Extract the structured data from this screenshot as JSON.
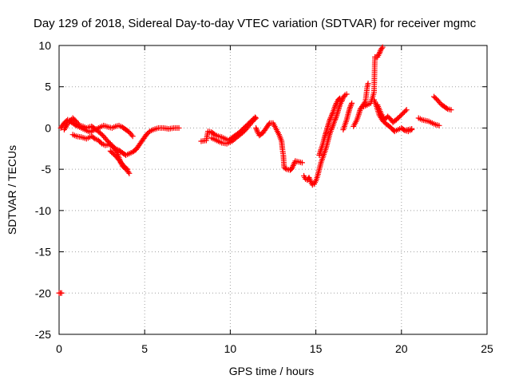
{
  "chart_data": {
    "type": "scatter",
    "title": "Day 129 of 2018, Sidereal Day-to-day VTEC variation (SDTVAR) for receiver mgmc",
    "xlabel": "GPS time / hours",
    "ylabel": "SDTVAR / TECUs",
    "xlim": [
      0,
      25
    ],
    "ylim": [
      -25,
      10
    ],
    "xticks": [
      0,
      5,
      10,
      15,
      20,
      25
    ],
    "yticks": [
      10,
      5,
      0,
      -5,
      -10,
      -15,
      -20,
      -25
    ],
    "grid": true,
    "marker": "+",
    "color": "#ff0000",
    "series": [
      {
        "name": "SDTVAR",
        "segments": [
          [
            [
              0.0,
              -20.0
            ],
            [
              0.15,
              -20.0
            ]
          ],
          [
            [
              0.1,
              0.0
            ],
            [
              0.3,
              0.6
            ],
            [
              0.5,
              1.0
            ],
            [
              0.6,
              0.9
            ],
            [
              0.8,
              0.6
            ],
            [
              1.0,
              0.3
            ],
            [
              1.2,
              0.1
            ],
            [
              1.5,
              -0.2
            ],
            [
              1.8,
              -0.5
            ],
            [
              2.0,
              -0.3
            ],
            [
              2.3,
              0.0
            ],
            [
              2.6,
              0.3
            ],
            [
              2.9,
              0.1
            ],
            [
              3.1,
              0.0
            ],
            [
              3.3,
              0.2
            ],
            [
              3.5,
              0.3
            ],
            [
              3.7,
              0.1
            ],
            [
              3.9,
              -0.2
            ],
            [
              4.1,
              -0.5
            ],
            [
              4.3,
              -1.0
            ]
          ],
          [
            [
              0.3,
              -0.2
            ],
            [
              0.5,
              0.5
            ],
            [
              0.8,
              1.2
            ],
            [
              1.0,
              0.8
            ],
            [
              1.2,
              0.3
            ],
            [
              1.4,
              0.2
            ],
            [
              1.6,
              0.0
            ],
            [
              1.9,
              0.2
            ],
            [
              2.1,
              -0.1
            ],
            [
              2.4,
              -0.6
            ],
            [
              2.6,
              -1.0
            ],
            [
              2.8,
              -1.5
            ],
            [
              3.0,
              -1.9
            ],
            [
              3.2,
              -2.4
            ],
            [
              3.4,
              -3.0
            ],
            [
              3.5,
              -3.6
            ],
            [
              3.6,
              -4.2
            ],
            [
              3.7,
              -4.6
            ],
            [
              3.85,
              -4.9
            ],
            [
              4.0,
              -5.2
            ],
            [
              4.1,
              -5.5
            ]
          ],
          [
            [
              0.8,
              -0.8
            ],
            [
              1.0,
              -1.0
            ],
            [
              1.3,
              -1.1
            ],
            [
              1.6,
              -1.3
            ],
            [
              1.9,
              -1.0
            ],
            [
              2.1,
              -1.3
            ],
            [
              2.3,
              -1.5
            ],
            [
              2.5,
              -1.9
            ],
            [
              2.7,
              -2.1
            ],
            [
              2.9,
              -2.0
            ],
            [
              3.1,
              -2.2
            ],
            [
              3.3,
              -2.5
            ],
            [
              3.5,
              -2.7
            ],
            [
              3.7,
              -3.0
            ],
            [
              3.9,
              -3.3
            ],
            [
              4.1,
              -3.1
            ],
            [
              4.3,
              -2.9
            ],
            [
              4.5,
              -2.6
            ],
            [
              4.7,
              -2.0
            ],
            [
              4.9,
              -1.4
            ],
            [
              5.1,
              -0.8
            ],
            [
              5.3,
              -0.4
            ],
            [
              5.5,
              -0.2
            ],
            [
              5.8,
              0.0
            ],
            [
              6.1,
              0.0
            ],
            [
              6.4,
              -0.1
            ],
            [
              6.7,
              0.0
            ],
            [
              7.0,
              0.0
            ]
          ],
          [
            [
              3.0,
              -2.8
            ],
            [
              3.2,
              -3.2
            ],
            [
              3.4,
              -3.6
            ],
            [
              3.55,
              -4.0
            ],
            [
              3.7,
              -4.4
            ],
            [
              3.85,
              -4.8
            ],
            [
              4.0,
              -5.0
            ]
          ],
          [
            [
              8.3,
              -1.6
            ],
            [
              8.6,
              -1.5
            ],
            [
              8.7,
              -0.4
            ],
            [
              8.9,
              -0.5
            ],
            [
              9.1,
              -0.8
            ],
            [
              9.3,
              -1.0
            ],
            [
              9.5,
              -1.1
            ],
            [
              9.7,
              -1.3
            ],
            [
              9.9,
              -1.5
            ],
            [
              10.1,
              -1.2
            ],
            [
              10.3,
              -0.9
            ],
            [
              10.5,
              -0.6
            ],
            [
              10.7,
              -0.2
            ],
            [
              10.9,
              0.2
            ],
            [
              11.1,
              0.6
            ],
            [
              11.3,
              1.0
            ],
            [
              11.45,
              1.3
            ]
          ],
          [
            [
              8.9,
              -1.2
            ],
            [
              9.2,
              -1.5
            ],
            [
              9.5,
              -1.8
            ],
            [
              9.8,
              -1.9
            ],
            [
              10.1,
              -1.6
            ],
            [
              10.4,
              -1.1
            ],
            [
              10.7,
              -0.6
            ],
            [
              10.9,
              -0.2
            ],
            [
              11.1,
              0.3
            ],
            [
              11.3,
              0.8
            ],
            [
              11.5,
              1.2
            ]
          ],
          [
            [
              11.5,
              0.0
            ],
            [
              11.6,
              -0.5
            ],
            [
              11.7,
              -0.9
            ],
            [
              11.9,
              -0.6
            ],
            [
              12.1,
              0.0
            ],
            [
              12.3,
              0.6
            ],
            [
              12.5,
              0.6
            ],
            [
              12.6,
              0.2
            ],
            [
              12.7,
              -0.2
            ],
            [
              12.85,
              -0.8
            ],
            [
              13.0,
              -1.6
            ],
            [
              13.05,
              -2.6
            ],
            [
              13.1,
              -3.3
            ],
            [
              13.15,
              -4.8
            ],
            [
              13.3,
              -5.0
            ],
            [
              13.5,
              -5.1
            ],
            [
              13.6,
              -4.9
            ],
            [
              13.8,
              -4.0
            ],
            [
              14.2,
              -4.2
            ]
          ],
          [
            [
              14.3,
              -5.8
            ],
            [
              14.4,
              -6.2
            ],
            [
              14.5,
              -6.3
            ],
            [
              14.6,
              -6.0
            ],
            [
              14.7,
              -6.5
            ],
            [
              14.8,
              -6.9
            ],
            [
              14.9,
              -6.8
            ],
            [
              15.0,
              -6.4
            ],
            [
              15.1,
              -5.8
            ],
            [
              15.2,
              -5.0
            ],
            [
              15.3,
              -4.2
            ],
            [
              15.4,
              -3.6
            ],
            [
              15.5,
              -3.0
            ],
            [
              15.6,
              -2.4
            ],
            [
              15.7,
              -1.6
            ],
            [
              15.8,
              -0.8
            ],
            [
              15.9,
              -0.2
            ],
            [
              16.0,
              0.3
            ],
            [
              16.1,
              0.9
            ],
            [
              16.2,
              1.4
            ],
            [
              16.3,
              2.1
            ],
            [
              16.4,
              2.8
            ],
            [
              16.5,
              3.2
            ],
            [
              16.6,
              3.7
            ],
            [
              16.7,
              4.0
            ],
            [
              16.8,
              4.1
            ]
          ],
          [
            [
              15.2,
              -3.3
            ],
            [
              15.3,
              -2.6
            ],
            [
              15.4,
              -2.0
            ],
            [
              15.5,
              -1.2
            ],
            [
              15.6,
              -0.5
            ],
            [
              15.7,
              0.2
            ],
            [
              15.8,
              0.9
            ],
            [
              15.9,
              1.4
            ],
            [
              16.0,
              1.9
            ],
            [
              16.1,
              2.5
            ],
            [
              16.2,
              3.0
            ],
            [
              16.3,
              3.4
            ],
            [
              16.4,
              3.6
            ]
          ],
          [
            [
              16.6,
              -0.2
            ],
            [
              16.7,
              0.4
            ],
            [
              16.8,
              1.0
            ],
            [
              16.9,
              1.8
            ],
            [
              17.0,
              2.5
            ],
            [
              17.1,
              3.0
            ]
          ],
          [
            [
              17.2,
              0.2
            ],
            [
              17.3,
              0.6
            ],
            [
              17.4,
              1.0
            ],
            [
              17.5,
              1.6
            ],
            [
              17.6,
              2.3
            ],
            [
              17.7,
              2.6
            ],
            [
              17.9,
              3.2
            ],
            [
              18.0,
              5.0
            ],
            [
              18.05,
              5.4
            ]
          ],
          [
            [
              17.8,
              2.6
            ],
            [
              18.0,
              2.8
            ],
            [
              18.2,
              3.0
            ],
            [
              18.4,
              4.3
            ],
            [
              18.45,
              8.6
            ],
            [
              18.6,
              8.6
            ],
            [
              18.7,
              9.0
            ],
            [
              18.8,
              9.5
            ],
            [
              18.9,
              9.8
            ]
          ],
          [
            [
              18.4,
              3.4
            ],
            [
              18.55,
              2.6
            ],
            [
              18.7,
              1.6
            ],
            [
              18.9,
              0.9
            ],
            [
              19.1,
              0.5
            ],
            [
              19.3,
              0.2
            ],
            [
              19.5,
              -0.2
            ],
            [
              19.6,
              -0.4
            ],
            [
              19.8,
              -0.2
            ],
            [
              20.0,
              0.0
            ],
            [
              20.2,
              -0.3
            ],
            [
              20.4,
              -0.2
            ],
            [
              20.6,
              -0.1
            ]
          ],
          [
            [
              18.6,
              2.8
            ],
            [
              18.8,
              1.8
            ],
            [
              19.0,
              1.0
            ],
            [
              19.2,
              1.4
            ],
            [
              19.4,
              1.0
            ],
            [
              19.5,
              0.7
            ],
            [
              19.7,
              1.0
            ],
            [
              19.9,
              1.4
            ],
            [
              20.1,
              1.8
            ],
            [
              20.3,
              2.2
            ]
          ],
          [
            [
              20.2,
              -0.3
            ],
            [
              20.4,
              -0.4
            ],
            [
              20.6,
              -0.2
            ]
          ],
          [
            [
              21.0,
              1.2
            ],
            [
              21.2,
              1.0
            ],
            [
              21.4,
              0.9
            ],
            [
              21.6,
              0.8
            ],
            [
              21.8,
              0.6
            ],
            [
              22.0,
              0.4
            ],
            [
              22.2,
              0.3
            ]
          ],
          [
            [
              21.9,
              3.8
            ],
            [
              22.1,
              3.4
            ],
            [
              22.3,
              2.9
            ],
            [
              22.5,
              2.6
            ],
            [
              22.7,
              2.3
            ],
            [
              22.9,
              2.2
            ]
          ]
        ]
      }
    ]
  }
}
